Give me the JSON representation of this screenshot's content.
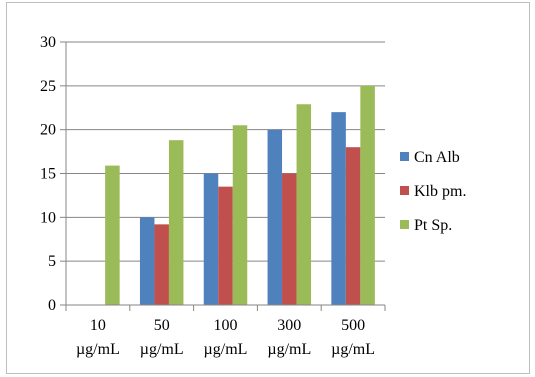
{
  "chart_data": {
    "type": "bar",
    "categories": [
      [
        "10",
        "µg/mL"
      ],
      [
        "50",
        "µg/mL"
      ],
      [
        "100",
        "µg/mL"
      ],
      [
        "300",
        "µg/mL"
      ],
      [
        "500",
        "µg/mL"
      ]
    ],
    "series": [
      {
        "name": "Cn Alb",
        "color": "#4f81bd",
        "values": [
          null,
          10,
          15,
          20,
          22
        ]
      },
      {
        "name": "Klb pm.",
        "color": "#c0504d",
        "values": [
          null,
          9.2,
          13.5,
          15,
          18
        ]
      },
      {
        "name": "Pt Sp.",
        "color": "#9bbb59",
        "values": [
          15.9,
          18.8,
          20.5,
          22.9,
          25
        ]
      }
    ],
    "ylim": [
      0,
      30
    ],
    "yticks": [
      0,
      5,
      10,
      15,
      20,
      25,
      30
    ],
    "grid": true,
    "legend": "right"
  }
}
